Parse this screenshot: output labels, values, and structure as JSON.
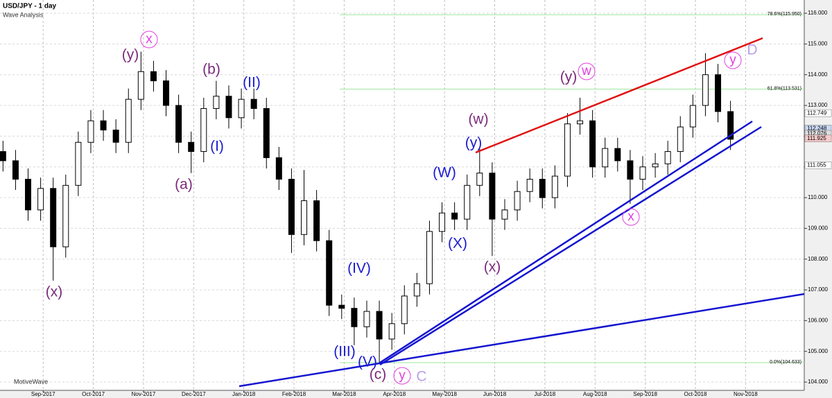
{
  "chart_data": {
    "type": "candlestick",
    "title": "USD/JPY - 1 day",
    "subtitle": "Wave Analysis",
    "watermark": "MotiveWave",
    "x": [
      -0.8,
      -0.55,
      -0.3,
      -0.05,
      0.2,
      0.45,
      0.7,
      0.95,
      1.2,
      1.45,
      1.7,
      1.95,
      2.2,
      2.45,
      2.7,
      2.95,
      3.2,
      3.45,
      3.7,
      3.95,
      4.2,
      4.45,
      4.7,
      4.95,
      5.2,
      5.45,
      5.7,
      5.95,
      6.2,
      6.45,
      6.7,
      6.95,
      7.2,
      7.45,
      7.7,
      7.95,
      8.2,
      8.45,
      8.7,
      8.95,
      9.2,
      9.45,
      9.7,
      9.95,
      10.2,
      10.45,
      10.7,
      10.95,
      11.2,
      11.45,
      11.7,
      11.95,
      12.2,
      12.45,
      12.7,
      12.95,
      13.2,
      13.45,
      13.7
    ],
    "open": [
      111.5,
      111.2,
      110.6,
      109.6,
      110.3,
      108.4,
      110.4,
      111.8,
      112.5,
      112.2,
      111.8,
      113.2,
      114.1,
      113.8,
      113.0,
      111.8,
      111.5,
      112.9,
      113.3,
      112.6,
      113.2,
      112.9,
      111.3,
      110.6,
      108.8,
      109.9,
      108.6,
      106.5,
      106.4,
      105.8,
      106.3,
      105.4,
      105.9,
      106.8,
      107.2,
      108.9,
      109.5,
      109.3,
      110.4,
      110.8,
      109.3,
      109.6,
      110.2,
      110.6,
      110.0,
      110.7,
      112.4,
      112.5,
      111.0,
      111.6,
      111.2,
      110.6,
      111.0,
      111.1,
      111.5,
      112.3,
      113.0,
      114.0,
      112.8
    ],
    "high": [
      111.85,
      111.55,
      110.95,
      110.65,
      110.65,
      110.75,
      112.15,
      112.85,
      112.85,
      112.55,
      113.55,
      114.75,
      114.45,
      114.15,
      113.35,
      112.15,
      113.25,
      113.8,
      113.65,
      113.55,
      113.55,
      113.25,
      111.65,
      110.95,
      110.9,
      110.25,
      108.95,
      106.85,
      106.75,
      106.65,
      106.65,
      106.25,
      107.15,
      107.55,
      109.25,
      109.85,
      109.85,
      110.75,
      111.6,
      111.15,
      109.95,
      110.55,
      110.95,
      110.95,
      111.05,
      112.75,
      113.25,
      112.85,
      111.95,
      111.95,
      111.55,
      111.35,
      111.45,
      111.85,
      112.65,
      113.35,
      114.7,
      114.35,
      113.15
    ],
    "low": [
      110.85,
      110.25,
      109.25,
      109.25,
      107.3,
      108.05,
      110.05,
      111.45,
      111.85,
      111.45,
      111.45,
      112.85,
      113.45,
      112.65,
      111.45,
      110.8,
      111.15,
      112.55,
      112.25,
      112.25,
      112.55,
      110.95,
      110.25,
      108.2,
      108.45,
      108.25,
      106.15,
      106.05,
      105.2,
      105.45,
      104.63,
      105.05,
      105.55,
      106.45,
      106.85,
      108.55,
      108.95,
      108.95,
      110.05,
      108.1,
      108.95,
      109.25,
      109.85,
      109.65,
      109.65,
      110.35,
      112.05,
      110.65,
      110.65,
      110.85,
      109.8,
      110.25,
      110.65,
      110.75,
      111.15,
      111.95,
      112.65,
      112.45,
      111.55
    ],
    "close": [
      111.2,
      110.6,
      109.6,
      110.3,
      108.4,
      110.4,
      111.8,
      112.5,
      112.2,
      111.8,
      113.2,
      114.1,
      113.8,
      113.0,
      111.8,
      111.5,
      112.9,
      113.3,
      112.6,
      113.2,
      112.9,
      111.3,
      110.6,
      108.8,
      109.9,
      108.6,
      106.5,
      106.4,
      105.8,
      106.3,
      105.4,
      105.9,
      106.8,
      107.2,
      108.9,
      109.5,
      109.3,
      110.4,
      110.8,
      109.3,
      109.6,
      110.2,
      110.6,
      110.0,
      110.7,
      112.4,
      112.5,
      111.0,
      111.6,
      111.2,
      110.6,
      111.0,
      111.1,
      111.5,
      112.3,
      113.0,
      114.0,
      112.8,
      111.9
    ],
    "xlim": [
      -0.86,
      15.17
    ],
    "xticks": [
      {
        "value": 0,
        "label": "Sep-2017"
      },
      {
        "value": 1,
        "label": "Oct-2017"
      },
      {
        "value": 2,
        "label": "Nov-2017"
      },
      {
        "value": 3,
        "label": "Dec-2017"
      },
      {
        "value": 4,
        "label": "Jan-2018"
      },
      {
        "value": 5,
        "label": "Feb-2018"
      },
      {
        "value": 6,
        "label": "Mar-2018"
      },
      {
        "value": 7,
        "label": "Apr-2018"
      },
      {
        "value": 8,
        "label": "May-2018"
      },
      {
        "value": 9,
        "label": "Jun-2018"
      },
      {
        "value": 10,
        "label": "Jul-2018"
      },
      {
        "value": 11,
        "label": "Aug-2018"
      },
      {
        "value": 12,
        "label": "Sep-2018"
      },
      {
        "value": 13,
        "label": "Oct-2018"
      },
      {
        "value": 14,
        "label": "Nov-2018"
      }
    ],
    "ylim": [
      103.73,
      116.43
    ],
    "yticks": [
      {
        "value": 104,
        "label": "104.000"
      },
      {
        "value": 105,
        "label": "105.000"
      },
      {
        "value": 106,
        "label": "106.000"
      },
      {
        "value": 107,
        "label": "107.000"
      },
      {
        "value": 108,
        "label": "108.000"
      },
      {
        "value": 109,
        "label": "109.000"
      },
      {
        "value": 110,
        "label": "110.000"
      },
      {
        "value": 111,
        "label": "111.000"
      },
      {
        "value": 112,
        "label": "112.000"
      },
      {
        "value": 113,
        "label": "113.000"
      },
      {
        "value": 114,
        "label": "114.000"
      },
      {
        "value": 115,
        "label": "115.000"
      },
      {
        "value": 116,
        "label": "116.000"
      }
    ],
    "grid": true,
    "fib_levels": [
      {
        "value": 115.95,
        "label": "78.6%(115.950)"
      },
      {
        "value": 113.531,
        "label": "61.8%(113.531)"
      },
      {
        "value": 104.633,
        "label": "0.0%(104.633)"
      }
    ],
    "price_tags": [
      112.749,
      112.248,
      112.076,
      111.925,
      111.055
    ],
    "price_tag_colors": [
      "#ffffff",
      "#c9d8f5",
      "#dddddd",
      "#f7caca",
      "#ffffff"
    ],
    "wave_labels": [
      {
        "text": "(x)",
        "color": "#7a2a7a"
      },
      {
        "text": "x",
        "color": "#e040e0",
        "circled": true
      },
      {
        "text": "(y)",
        "color": "#7a2a7a"
      },
      {
        "text": "(b)",
        "color": "#7a2a7a"
      },
      {
        "text": "(II)",
        "color": "#1a1ad0"
      },
      {
        "text": "(I)",
        "color": "#1a1ad0"
      },
      {
        "text": "(a)",
        "color": "#7a2a7a"
      },
      {
        "text": "(w)",
        "color": "#7a2a7a"
      },
      {
        "text": "(y)",
        "color": "#1a1ad0"
      },
      {
        "text": "(W)",
        "color": "#1a1ad0"
      },
      {
        "text": "(X)",
        "color": "#1a1ad0"
      },
      {
        "text": "(x)",
        "color": "#7a2a7a"
      },
      {
        "text": "(IV)",
        "color": "#1a1ad0"
      },
      {
        "text": "(III)",
        "color": "#1a1ad0"
      },
      {
        "text": "(V)",
        "color": "#1a1ad0"
      },
      {
        "text": "(c)",
        "color": "#7a2a7a"
      },
      {
        "text": "y",
        "color": "#e040e0",
        "circled": true
      },
      {
        "text": "C",
        "color": "#b9a0e6"
      },
      {
        "text": "(y)",
        "color": "#7a2a7a"
      },
      {
        "text": "w",
        "color": "#e040e0",
        "circled": true
      },
      {
        "text": "x",
        "color": "#e040e0",
        "circled": true
      },
      {
        "text": "y",
        "color": "#e040e0",
        "circled": true
      },
      {
        "text": "D",
        "color": "#b9a0e6"
      }
    ]
  }
}
